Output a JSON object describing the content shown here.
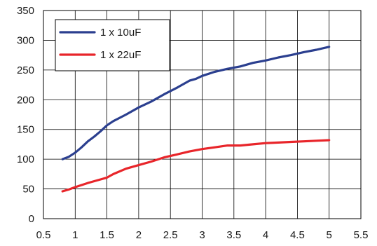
{
  "chart_data": {
    "type": "line",
    "title": "",
    "xlabel": "",
    "ylabel": "",
    "xlim": [
      0.5,
      5.5
    ],
    "ylim": [
      0,
      350
    ],
    "x_ticks": [
      "0.5",
      "1",
      "1.5",
      "2",
      "2.5",
      "3",
      "3.5",
      "4",
      "4.5",
      "5",
      "5.5"
    ],
    "y_ticks": [
      "0",
      "50",
      "100",
      "150",
      "200",
      "250",
      "300",
      "350"
    ],
    "x_tick_values": [
      0.5,
      1,
      1.5,
      2,
      2.5,
      3,
      3.5,
      4,
      4.5,
      5,
      5.5
    ],
    "y_tick_values": [
      0,
      50,
      100,
      150,
      200,
      250,
      300,
      350
    ],
    "grid": true,
    "legend_position": "top-left",
    "series": [
      {
        "name": "1 x 10uF",
        "color": "#2b3f8f",
        "x": [
          0.8,
          0.9,
          1.0,
          1.1,
          1.2,
          1.3,
          1.4,
          1.5,
          1.6,
          1.8,
          2.0,
          2.2,
          2.4,
          2.6,
          2.8,
          2.9,
          3.0,
          3.2,
          3.4,
          3.6,
          3.8,
          4.0,
          4.2,
          4.4,
          4.6,
          4.8,
          5.0
        ],
        "y": [
          100,
          104,
          111,
          120,
          130,
          138,
          147,
          157,
          164,
          175,
          187,
          197,
          209,
          220,
          232,
          235,
          240,
          247,
          252,
          256,
          262,
          266,
          271,
          275,
          280,
          284,
          289
        ]
      },
      {
        "name": "1 x 22uF",
        "color": "#e8252a",
        "x": [
          0.8,
          0.9,
          1.0,
          1.2,
          1.4,
          1.5,
          1.6,
          1.8,
          2.0,
          2.2,
          2.4,
          2.6,
          2.8,
          3.0,
          3.2,
          3.4,
          3.6,
          3.8,
          4.0,
          4.2,
          4.4,
          4.6,
          4.8,
          5.0
        ],
        "y": [
          46,
          49,
          53,
          60,
          66,
          69,
          75,
          84,
          90,
          96,
          103,
          108,
          113,
          117,
          120,
          123,
          123,
          125,
          127,
          128,
          129,
          130,
          131,
          132
        ]
      }
    ]
  }
}
